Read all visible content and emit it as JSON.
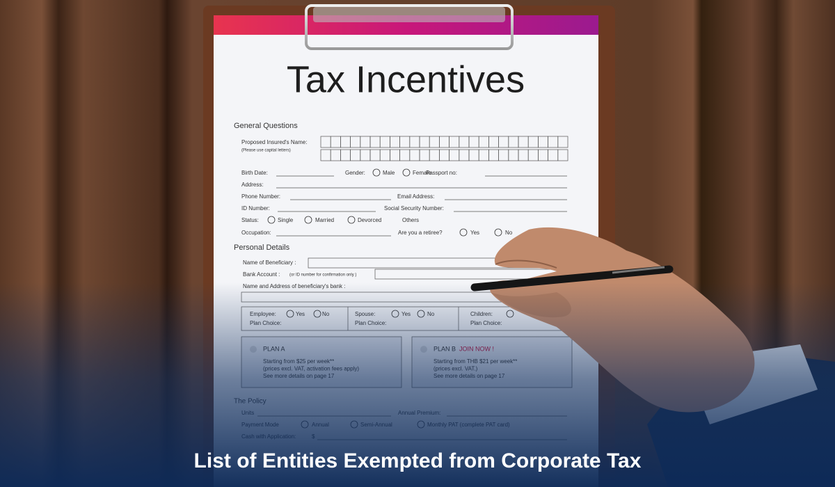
{
  "title": "Tax Incentives",
  "general": {
    "heading": "General Questions",
    "name_label": "Proposed Insured's Name:",
    "name_note": "(Please use capital letters)",
    "birth_date": "Birth Date:",
    "gender": "Gender:",
    "male": "Male",
    "female": "Female",
    "passport": "Passport no:",
    "address": "Address:",
    "phone": "Phone Number:",
    "email": "Email Address:",
    "id": "ID Number:",
    "ssn": "Social Security  Number:",
    "status": "Status:",
    "single": "Single",
    "married": "Married",
    "devorced": "Devorced",
    "others": "Others",
    "occupation": "Occupation:",
    "retiree": "Are you a retiree?",
    "yes": "Yes",
    "no": "No"
  },
  "personal": {
    "heading": "Personal Details",
    "beneficiary": "Name of Beneficiary :",
    "bank_account": "Bank Account :",
    "bank_note": "(or ID number for confirmation only )",
    "bank_address": "Name and Address of beneficiary's bank :",
    "employee": "Employee:",
    "spouse": "Spouse:",
    "children": "Children:",
    "plan_choice": "Plan Choice:"
  },
  "plans": [
    {
      "name": "PLAN A",
      "lines": [
        "Starting from $25 per week**",
        "(prices excl. VAT, activation fees apply)",
        "See more details on page 17"
      ]
    },
    {
      "name": "PLAN B",
      "cta": "JOIN NOW !",
      "lines": [
        "Starting from THB $21 per week**",
        "(prices excl. VAT.)",
        "See more details on page 17"
      ]
    }
  ],
  "policy": {
    "heading": "The Policy",
    "units": "Units",
    "premium": "Annual Premium:",
    "payment_mode": "Payment Mode",
    "annual": "Annual",
    "semi": "Semi-Annual",
    "monthly": "Monthly PAT (complete PAT card)",
    "cash": "Cash with Application:",
    "dollar": "$"
  },
  "caption": "List of Entities Exempted from Corporate Tax"
}
